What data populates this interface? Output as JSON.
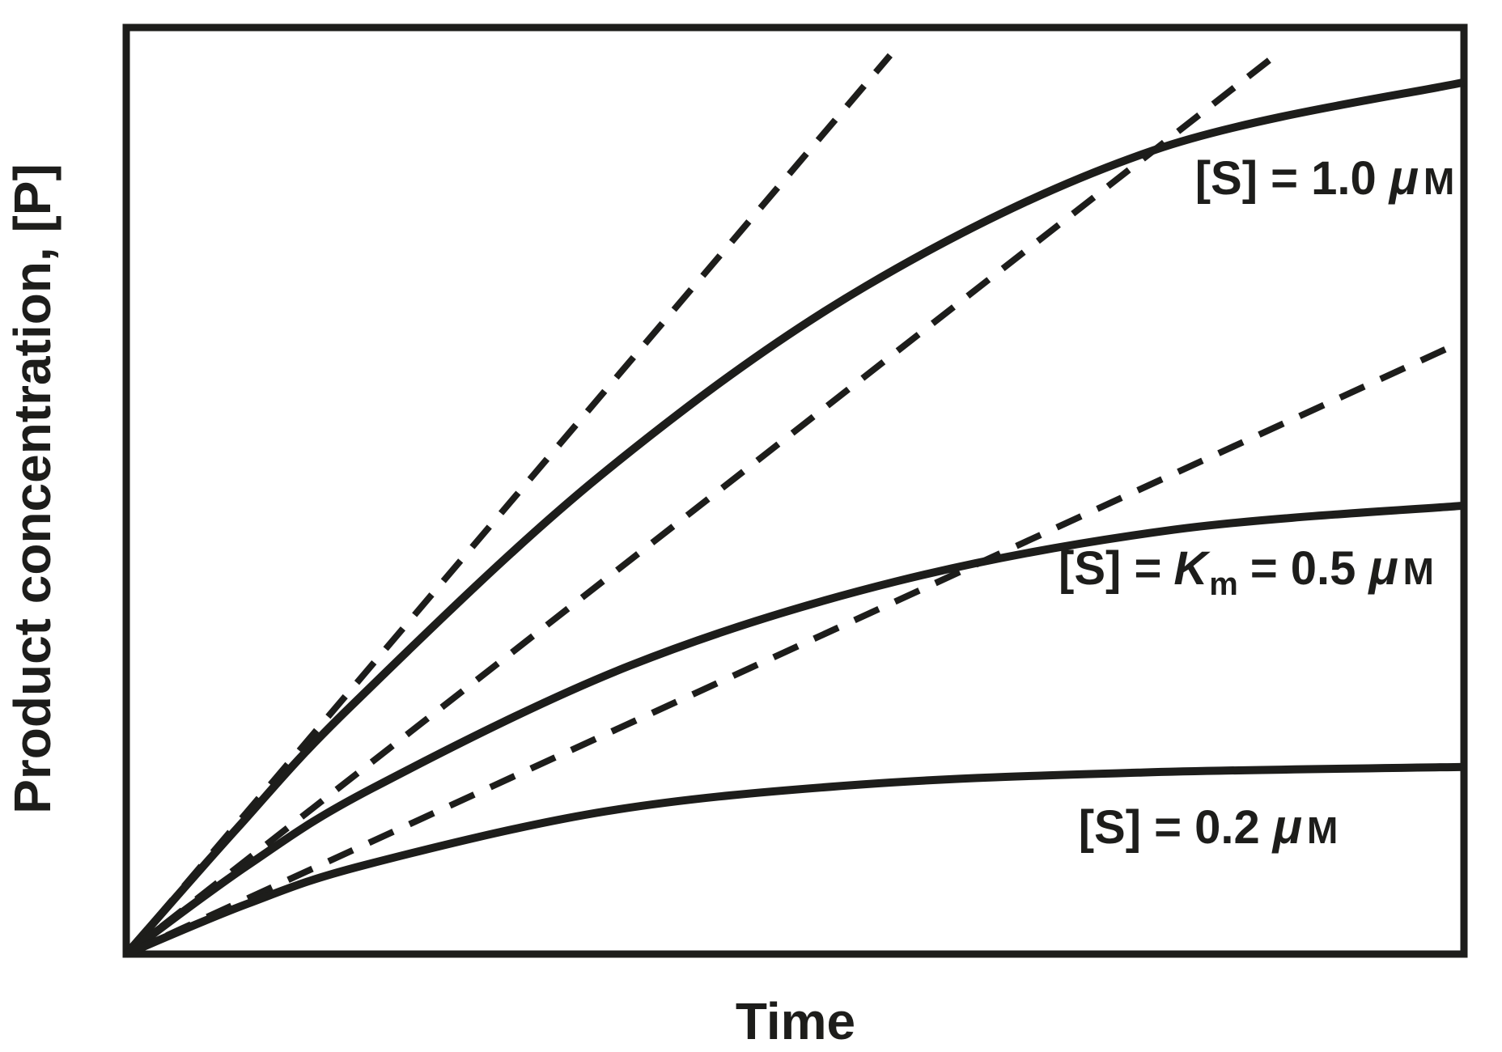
{
  "colors": {
    "ink": "#1d1d1b",
    "background": "#ffffff"
  },
  "axes": {
    "x_label": "Time",
    "y_label": "Product concentration, [P]"
  },
  "labels": {
    "s1": {
      "pre": "[S] = 1.0",
      "mu": "μ",
      "unit": "M"
    },
    "s2": {
      "pre": "[S] =",
      "k": "K",
      "k_sub": "m",
      "mid": "= 0.5",
      "mu": "μ",
      "unit": "M"
    },
    "s3": {
      "pre": "[S] = 0.2",
      "mu": "μ",
      "unit": "M"
    }
  },
  "chart_data": {
    "type": "line",
    "title": "",
    "xlabel": "Time",
    "ylabel": "Product concentration, [P]",
    "x_range": [
      0,
      1
    ],
    "y_range": [
      0,
      1
    ],
    "grid": false,
    "legend_position": "inline-annotations",
    "axes_note": "no tick marks or numeric tick labels; qualitative axes inside a rectangular frame; values below are normalized fractions of the plot frame",
    "series": [
      {
        "name": "[S] = 1.0 μM",
        "style": "solid",
        "points": [
          [
            0,
            0
          ],
          [
            0.083,
            0.136
          ],
          [
            0.169,
            0.269
          ],
          [
            0.354,
            0.516
          ],
          [
            0.553,
            0.721
          ],
          [
            0.769,
            0.868
          ],
          [
            1.0,
            0.941
          ]
        ]
      },
      {
        "name": "[S] = Km = 0.5 μM",
        "style": "solid",
        "points": [
          [
            0,
            0
          ],
          [
            0.091,
            0.096
          ],
          [
            0.184,
            0.179
          ],
          [
            0.376,
            0.311
          ],
          [
            0.575,
            0.402
          ],
          [
            0.783,
            0.458
          ],
          [
            1.0,
            0.484
          ]
        ]
      },
      {
        "name": "[S] = 0.2 μM",
        "style": "solid",
        "points": [
          [
            0,
            0
          ],
          [
            0.09,
            0.054
          ],
          [
            0.178,
            0.096
          ],
          [
            0.358,
            0.154
          ],
          [
            0.549,
            0.183
          ],
          [
            0.76,
            0.196
          ],
          [
            1.0,
            0.202
          ]
        ]
      },
      {
        "name": "initial-rate tangent for [S] = 1.0 μM",
        "style": "dashed",
        "points": [
          [
            0,
            0
          ],
          [
            0.571,
            0.97
          ]
        ]
      },
      {
        "name": "initial-rate tangent for [S] = Km = 0.5 μM",
        "style": "dashed",
        "points": [
          [
            0,
            0
          ],
          [
            0.86,
            0.971
          ]
        ]
      },
      {
        "name": "initial-rate tangent for [S] = 0.2 μM",
        "style": "dashed",
        "points": [
          [
            0,
            0
          ],
          [
            0.988,
            0.654
          ]
        ]
      }
    ],
    "annotations": [
      {
        "text": "[S] = 1.0 μM",
        "anchor_norm": [
          0.896,
          0.82
        ]
      },
      {
        "text": "[S] = Km = 0.5 μM",
        "anchor_norm": [
          0.838,
          0.399
        ]
      },
      {
        "text": "[S] = 0.2 μM",
        "anchor_norm": [
          0.809,
          0.12
        ]
      }
    ]
  }
}
